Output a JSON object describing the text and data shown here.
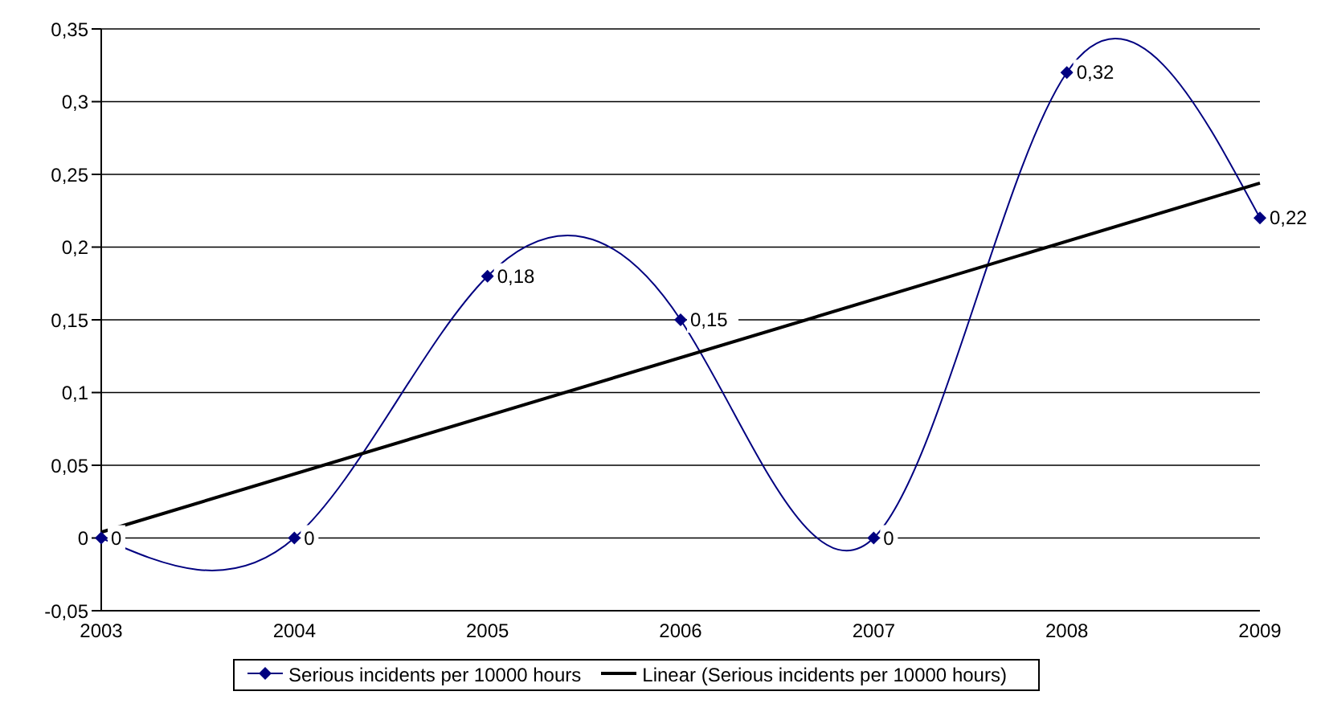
{
  "chart_data": {
    "type": "line",
    "categories": [
      "2003",
      "2004",
      "2005",
      "2006",
      "2007",
      "2008",
      "2009"
    ],
    "series": [
      {
        "name": "Serious incidents per 10000 hours",
        "color": "#000080",
        "values": [
          0,
          0,
          0.18,
          0.15,
          0,
          0.32,
          0.22
        ],
        "marker": "diamond",
        "value_labels": [
          "0",
          "0",
          "0,18",
          "0,15",
          "0",
          "0,32",
          "0,22"
        ]
      },
      {
        "name": "Linear (Serious incidents per 10000 hours)",
        "color": "#000000",
        "values": [
          0.004,
          null,
          null,
          null,
          null,
          null,
          0.244
        ],
        "marker": "none"
      }
    ],
    "ylim": [
      -0.05,
      0.35
    ],
    "yticks": [
      {
        "value": -0.05,
        "label": "-0,05"
      },
      {
        "value": 0,
        "label": "0"
      },
      {
        "value": 0.05,
        "label": "0,05"
      },
      {
        "value": 0.1,
        "label": "0,1"
      },
      {
        "value": 0.15,
        "label": "0,15"
      },
      {
        "value": 0.2,
        "label": "0,2"
      },
      {
        "value": 0.25,
        "label": "0,25"
      },
      {
        "value": 0.3,
        "label": "0,3"
      },
      {
        "value": 0.35,
        "label": "0,35"
      }
    ],
    "grid": "y",
    "legend": "bottom"
  }
}
